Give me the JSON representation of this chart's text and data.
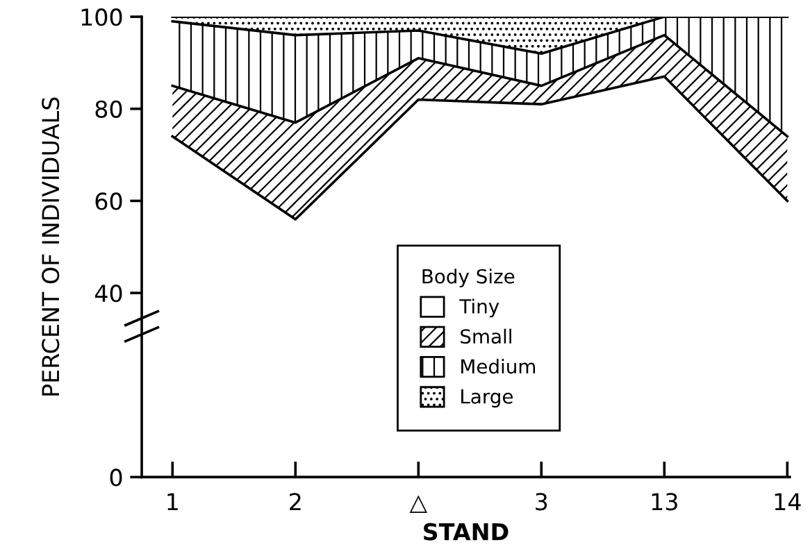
{
  "chart_data": {
    "type": "area",
    "stacked": true,
    "xlabel": "STAND",
    "ylabel": "PERCENT OF INDIVIDUALS",
    "legend_title": "Body Size",
    "legend": "bottom",
    "grid": false,
    "categories": [
      "1",
      "2",
      "△",
      "3",
      "13",
      "14"
    ],
    "ylim": [
      0,
      100
    ],
    "yticks": [
      0,
      40,
      60,
      80,
      100
    ],
    "series": [
      {
        "name": "Tiny",
        "color": "#ffffff",
        "values": [
          74,
          56,
          82,
          81,
          87,
          60
        ]
      },
      {
        "name": "Small",
        "color": "#ffffff",
        "values": [
          11,
          21,
          9,
          4,
          9,
          14
        ]
      },
      {
        "name": "Medium",
        "color": "#ffffff",
        "values": [
          14,
          19,
          6,
          7,
          4,
          26
        ]
      },
      {
        "name": "Large",
        "color": "#ffffff",
        "values": [
          1,
          4,
          3,
          8,
          0,
          0
        ]
      }
    ]
  }
}
